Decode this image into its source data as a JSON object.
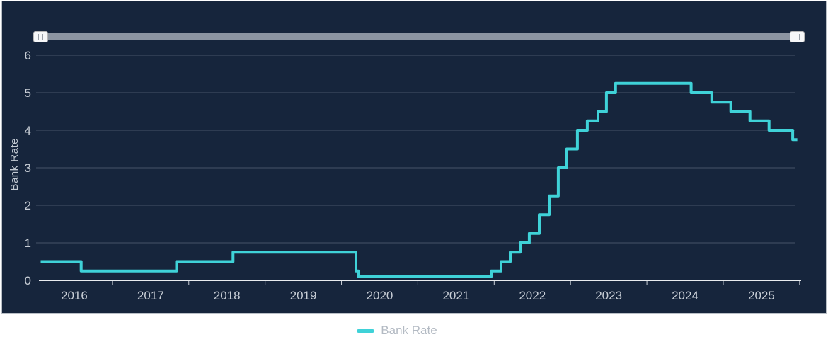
{
  "colors": {
    "page_background": "#ffffff",
    "panel_background": "#16253C",
    "panel_border": "#b9bfc6",
    "line": "#3FD2D8",
    "gridline": "#455268",
    "zero_axis": "#E9ECEF",
    "tick": "#CBD1D9",
    "axis_label": "#C8CED6",
    "y_title": "#C3CAD3",
    "scrollbar_track": "#8C95A2",
    "scrollbar_handle": "#f7f8f9",
    "legend_text": "#B3BAC3"
  },
  "scrollbar": {
    "left_handle": "drag-handle",
    "right_handle": "drag-handle"
  },
  "legend": {
    "items": [
      {
        "label": "Bank Rate",
        "color": "#3FD2D8"
      }
    ]
  },
  "chart_data": {
    "type": "line",
    "subtype": "step-after",
    "title": "",
    "xlabel": "",
    "ylabel": "Bank Rate",
    "xlim": [
      2016.0,
      2026.02
    ],
    "ylim": [
      0,
      6
    ],
    "y_ticks": [
      0,
      1,
      2,
      3,
      4,
      5,
      6
    ],
    "x_tick_years": [
      2016,
      2017,
      2018,
      2019,
      2020,
      2021,
      2022,
      2023,
      2024,
      2025
    ],
    "x_boundary_ticks": [
      2017,
      2018,
      2019,
      2020,
      2021,
      2022,
      2023,
      2024,
      2025,
      2026
    ],
    "grid": "horizontal",
    "legend_position": "bottom-center",
    "series": [
      {
        "name": "Bank Rate",
        "color": "#3FD2D8",
        "points": [
          [
            2016.06,
            0.5
          ],
          [
            2016.59,
            0.25
          ],
          [
            2017.84,
            0.5
          ],
          [
            2018.58,
            0.75
          ],
          [
            2020.19,
            0.25
          ],
          [
            2020.22,
            0.1
          ],
          [
            2021.96,
            0.25
          ],
          [
            2022.09,
            0.5
          ],
          [
            2022.21,
            0.75
          ],
          [
            2022.34,
            1.0
          ],
          [
            2022.46,
            1.25
          ],
          [
            2022.59,
            1.75
          ],
          [
            2022.72,
            2.25
          ],
          [
            2022.84,
            3.0
          ],
          [
            2022.95,
            3.5
          ],
          [
            2023.09,
            4.0
          ],
          [
            2023.22,
            4.25
          ],
          [
            2023.36,
            4.5
          ],
          [
            2023.47,
            5.0
          ],
          [
            2023.59,
            5.25
          ],
          [
            2024.58,
            5.0
          ],
          [
            2024.85,
            4.75
          ],
          [
            2025.1,
            4.5
          ],
          [
            2025.35,
            4.25
          ],
          [
            2025.6,
            4.0
          ],
          [
            2025.91,
            3.75
          ]
        ],
        "x_end": 2025.97
      }
    ]
  }
}
